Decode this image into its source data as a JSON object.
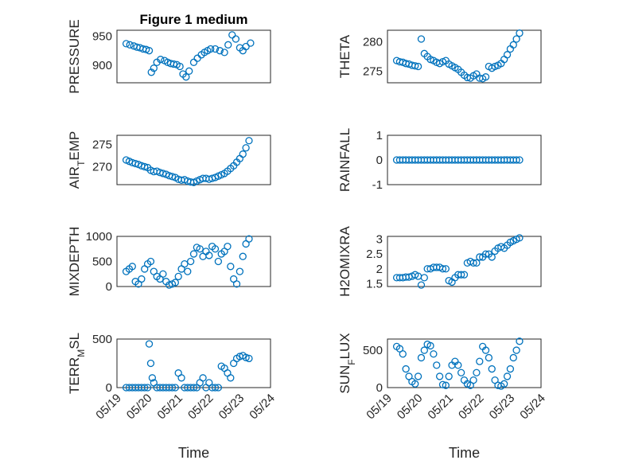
{
  "chart_data": [
    {
      "type": "scatter",
      "title": "Figure 1 medium",
      "ylabel": "PRESSURE",
      "xlabel": "",
      "xlim": [
        0,
        5
      ],
      "ylim": [
        870,
        960
      ],
      "yticks": [
        900,
        950
      ],
      "xticks": [
        0,
        1,
        2,
        3,
        4,
        5
      ],
      "series": [
        {
          "x": [
            0.3,
            0.42,
            0.55,
            0.65,
            0.75,
            0.85,
            0.95,
            1.05,
            1.12,
            1.2,
            1.3,
            1.42,
            1.55,
            1.65,
            1.75,
            1.85,
            1.95,
            2.05,
            2.15,
            2.25,
            2.35,
            2.5,
            2.62,
            2.75,
            2.85,
            2.95,
            3.05,
            3.2,
            3.35,
            3.5,
            3.62,
            3.75,
            3.87,
            4.0,
            4.1,
            4.2,
            4.35
          ],
          "y": [
            937,
            935,
            933,
            931,
            930,
            928,
            927,
            925,
            888,
            895,
            905,
            910,
            908,
            905,
            903,
            902,
            901,
            898,
            885,
            880,
            890,
            905,
            912,
            918,
            922,
            925,
            928,
            928,
            925,
            922,
            935,
            952,
            945,
            930,
            925,
            932,
            938
          ]
        }
      ]
    },
    {
      "type": "scatter",
      "title": "",
      "ylabel": "THETA",
      "xlabel": "",
      "xlim": [
        0,
        5
      ],
      "ylim": [
        273,
        282
      ],
      "yticks": [
        275,
        280
      ],
      "xticks": [
        0,
        1,
        2,
        3,
        4,
        5
      ],
      "series": [
        {
          "x": [
            0.3,
            0.4,
            0.5,
            0.6,
            0.7,
            0.8,
            0.9,
            1.0,
            1.1,
            1.2,
            1.3,
            1.4,
            1.5,
            1.6,
            1.7,
            1.8,
            1.9,
            2.0,
            2.1,
            2.2,
            2.3,
            2.4,
            2.5,
            2.6,
            2.7,
            2.8,
            2.9,
            3.0,
            3.1,
            3.2,
            3.3,
            3.4,
            3.5,
            3.6,
            3.7,
            3.8,
            3.9,
            4.0,
            4.1,
            4.2,
            4.3
          ],
          "y": [
            276.8,
            276.6,
            276.5,
            276.3,
            276.2,
            276.0,
            275.9,
            275.8,
            280.5,
            278.0,
            277.5,
            277.0,
            276.8,
            276.5,
            276.3,
            276.6,
            276.8,
            276.2,
            275.9,
            275.6,
            275.3,
            274.8,
            274.3,
            273.9,
            273.8,
            274.2,
            274.5,
            273.8,
            273.7,
            274.0,
            275.8,
            275.5,
            275.8,
            276.0,
            276.3,
            277.0,
            277.8,
            278.8,
            279.5,
            280.5,
            281.5
          ]
        }
      ]
    },
    {
      "type": "scatter",
      "title": "",
      "ylabel": "AIR_TEMP",
      "xlabel": "",
      "xlim": [
        0,
        5
      ],
      "ylim": [
        266,
        277
      ],
      "yticks": [
        270,
        275
      ],
      "xticks": [
        0,
        1,
        2,
        3,
        4,
        5
      ],
      "series": [
        {
          "x": [
            0.3,
            0.4,
            0.5,
            0.6,
            0.7,
            0.8,
            0.9,
            1.0,
            1.1,
            1.2,
            1.3,
            1.4,
            1.5,
            1.6,
            1.7,
            1.8,
            1.9,
            2.0,
            2.1,
            2.2,
            2.3,
            2.4,
            2.5,
            2.6,
            2.7,
            2.8,
            2.9,
            3.0,
            3.1,
            3.2,
            3.3,
            3.4,
            3.5,
            3.6,
            3.7,
            3.8,
            3.9,
            4.0,
            4.1,
            4.2,
            4.3
          ],
          "y": [
            271.5,
            271.2,
            270.9,
            270.7,
            270.5,
            270.2,
            270.0,
            269.8,
            269.2,
            268.9,
            269.0,
            268.7,
            268.5,
            268.3,
            268.0,
            267.8,
            267.6,
            267.2,
            267.0,
            267.1,
            266.8,
            266.6,
            266.5,
            266.8,
            267.1,
            267.4,
            267.4,
            267.2,
            267.4,
            267.6,
            267.9,
            268.2,
            268.5,
            269.0,
            269.6,
            270.2,
            271.0,
            271.8,
            272.8,
            274.2,
            275.8
          ]
        }
      ]
    },
    {
      "type": "scatter",
      "title": "",
      "ylabel": "RAINFALL",
      "xlabel": "",
      "xlim": [
        0,
        5
      ],
      "ylim": [
        -1,
        1
      ],
      "yticks": [
        -1,
        0,
        1
      ],
      "xticks": [
        0,
        1,
        2,
        3,
        4,
        5
      ],
      "series": [
        {
          "x": [
            0.3,
            0.4,
            0.5,
            0.6,
            0.7,
            0.8,
            0.9,
            1.0,
            1.1,
            1.2,
            1.3,
            1.4,
            1.5,
            1.6,
            1.7,
            1.8,
            1.9,
            2.0,
            2.1,
            2.2,
            2.3,
            2.4,
            2.5,
            2.6,
            2.7,
            2.8,
            2.9,
            3.0,
            3.1,
            3.2,
            3.3,
            3.4,
            3.5,
            3.6,
            3.7,
            3.8,
            3.9,
            4.0,
            4.1,
            4.2,
            4.3
          ],
          "y": [
            0,
            0,
            0,
            0,
            0,
            0,
            0,
            0,
            0,
            0,
            0,
            0,
            0,
            0,
            0,
            0,
            0,
            0,
            0,
            0,
            0,
            0,
            0,
            0,
            0,
            0,
            0,
            0,
            0,
            0,
            0,
            0,
            0,
            0,
            0,
            0,
            0,
            0,
            0,
            0,
            0
          ]
        }
      ]
    },
    {
      "type": "scatter",
      "title": "",
      "ylabel": "MIXDEPTH",
      "xlabel": "",
      "xlim": [
        0,
        5
      ],
      "ylim": [
        0,
        1000
      ],
      "yticks": [
        0,
        500,
        1000
      ],
      "xticks": [
        0,
        1,
        2,
        3,
        4,
        5
      ],
      "series": [
        {
          "x": [
            0.3,
            0.4,
            0.5,
            0.6,
            0.7,
            0.8,
            0.9,
            1.0,
            1.1,
            1.2,
            1.3,
            1.4,
            1.5,
            1.6,
            1.7,
            1.8,
            1.9,
            2.0,
            2.1,
            2.2,
            2.3,
            2.4,
            2.5,
            2.6,
            2.7,
            2.8,
            2.9,
            3.0,
            3.1,
            3.2,
            3.3,
            3.4,
            3.5,
            3.6,
            3.7,
            3.8,
            3.9,
            4.0,
            4.1,
            4.2,
            4.3
          ],
          "y": [
            300,
            350,
            400,
            100,
            50,
            150,
            350,
            450,
            500,
            300,
            200,
            150,
            250,
            100,
            30,
            50,
            80,
            200,
            350,
            450,
            300,
            500,
            650,
            780,
            750,
            600,
            700,
            620,
            800,
            750,
            500,
            650,
            700,
            800,
            400,
            150,
            50,
            300,
            600,
            850,
            950
          ]
        }
      ]
    },
    {
      "type": "scatter",
      "title": "",
      "ylabel": "H2OMIXRA",
      "xlabel": "",
      "xlim": [
        0,
        5
      ],
      "ylim": [
        1.4,
        3.1
      ],
      "yticks": [
        1.5,
        2,
        2.5,
        3
      ],
      "xticks": [
        0,
        1,
        2,
        3,
        4,
        5
      ],
      "series": [
        {
          "x": [
            0.3,
            0.4,
            0.5,
            0.6,
            0.7,
            0.8,
            0.9,
            1.0,
            1.1,
            1.2,
            1.3,
            1.4,
            1.5,
            1.6,
            1.7,
            1.8,
            1.9,
            2.0,
            2.1,
            2.2,
            2.3,
            2.4,
            2.5,
            2.6,
            2.7,
            2.8,
            2.9,
            3.0,
            3.1,
            3.2,
            3.3,
            3.4,
            3.5,
            3.6,
            3.7,
            3.8,
            3.9,
            4.0,
            4.1,
            4.2,
            4.3
          ],
          "y": [
            1.7,
            1.7,
            1.7,
            1.72,
            1.72,
            1.75,
            1.8,
            1.75,
            1.45,
            1.7,
            2.0,
            2.0,
            2.05,
            2.05,
            2.05,
            2.0,
            2.0,
            1.6,
            1.55,
            1.7,
            1.8,
            1.8,
            1.8,
            2.2,
            2.25,
            2.2,
            2.2,
            2.4,
            2.4,
            2.5,
            2.5,
            2.4,
            2.6,
            2.7,
            2.75,
            2.7,
            2.8,
            2.9,
            2.95,
            3.0,
            3.05
          ]
        }
      ]
    },
    {
      "type": "scatter",
      "title": "",
      "ylabel": "TERR_MSL",
      "xlabel": "Time",
      "xlim": [
        0,
        5
      ],
      "ylim": [
        0,
        500
      ],
      "yticks": [
        0,
        500
      ],
      "xticks": [
        0,
        1,
        2,
        3,
        4,
        5
      ],
      "xticklabels": [
        "05/19",
        "05/20",
        "05/21",
        "05/22",
        "05/23",
        "05/24"
      ],
      "series": [
        {
          "x": [
            0.3,
            0.4,
            0.5,
            0.6,
            0.7,
            0.8,
            0.9,
            1.0,
            1.05,
            1.1,
            1.15,
            1.2,
            1.3,
            1.4,
            1.5,
            1.6,
            1.7,
            1.8,
            1.9,
            2.0,
            2.1,
            2.2,
            2.3,
            2.4,
            2.5,
            2.6,
            2.7,
            2.8,
            2.9,
            3.0,
            3.1,
            3.2,
            3.3,
            3.4,
            3.5,
            3.6,
            3.7,
            3.8,
            3.9,
            4.0,
            4.1,
            4.2,
            4.3
          ],
          "y": [
            0,
            0,
            0,
            0,
            0,
            0,
            0,
            0,
            450,
            250,
            100,
            50,
            0,
            0,
            0,
            0,
            0,
            0,
            0,
            150,
            100,
            0,
            0,
            0,
            0,
            0,
            50,
            100,
            0,
            50,
            0,
            0,
            0,
            220,
            200,
            150,
            100,
            250,
            300,
            320,
            330,
            310,
            300
          ]
        }
      ]
    },
    {
      "type": "scatter",
      "title": "",
      "ylabel": "SUN_FLUX",
      "xlabel": "Time",
      "xlim": [
        0,
        5
      ],
      "ylim": [
        0,
        650
      ],
      "yticks": [
        0,
        500
      ],
      "xticks": [
        0,
        1,
        2,
        3,
        4,
        5
      ],
      "xticklabels": [
        "05/19",
        "05/20",
        "05/21",
        "05/22",
        "05/23",
        "05/24"
      ],
      "series": [
        {
          "x": [
            0.3,
            0.4,
            0.5,
            0.6,
            0.7,
            0.8,
            0.9,
            1.0,
            1.1,
            1.2,
            1.3,
            1.4,
            1.5,
            1.6,
            1.7,
            1.8,
            1.9,
            2.0,
            2.1,
            2.2,
            2.3,
            2.4,
            2.5,
            2.6,
            2.7,
            2.8,
            2.9,
            3.0,
            3.1,
            3.2,
            3.3,
            3.4,
            3.5,
            3.6,
            3.7,
            3.8,
            3.9,
            4.0,
            4.1,
            4.2,
            4.3
          ],
          "y": [
            550,
            520,
            450,
            250,
            150,
            80,
            50,
            150,
            400,
            500,
            580,
            560,
            450,
            300,
            150,
            40,
            30,
            150,
            300,
            350,
            300,
            200,
            100,
            50,
            30,
            100,
            200,
            350,
            550,
            500,
            400,
            250,
            100,
            30,
            20,
            50,
            150,
            250,
            400,
            500,
            620
          ]
        }
      ]
    }
  ]
}
